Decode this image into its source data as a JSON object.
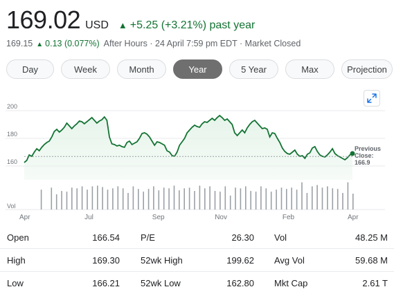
{
  "quote": {
    "price": "169.02",
    "currency": "USD",
    "change_arrow": "▲",
    "change": "+5.25 (+3.21%) past year",
    "after_hours_price": "169.15",
    "after_hours_arrow": "▲",
    "after_hours_change": "0.13 (0.077%)",
    "after_hours_note": "After Hours · 24 April 7:59 pm EDT · Market Closed",
    "up_color": "#137333"
  },
  "tabs": [
    {
      "label": "Day",
      "active": false
    },
    {
      "label": "Week",
      "active": false
    },
    {
      "label": "Month",
      "active": false
    },
    {
      "label": "Year",
      "active": true
    },
    {
      "label": "5 Year",
      "active": false
    },
    {
      "label": "Max",
      "active": false
    },
    {
      "label": "Projection",
      "active": false
    }
  ],
  "expand_icon": "expand-diagonal-icon",
  "chart_data": {
    "type": "area",
    "y_ticks": [
      "200",
      "180",
      "160"
    ],
    "y_tick_values": [
      200,
      180,
      160
    ],
    "ylim": [
      150,
      203
    ],
    "volume_label": "Vol",
    "x_labels": [
      "Apr",
      "Jul",
      "Sep",
      "Nov",
      "Feb",
      "Apr"
    ],
    "x_label_positions": [
      0,
      0.26,
      0.53,
      0.78,
      1.05,
      1.31
    ],
    "previous_close_label": [
      "Previous",
      "Close:",
      "166.9"
    ],
    "previous_close": 166.9,
    "line_color": "#137333",
    "fill_color": "#e6f4ea",
    "grid": true,
    "series": [
      {
        "values": [
          162.5,
          164,
          168,
          167,
          170,
          172.5,
          171,
          173.5,
          175.5,
          177,
          178,
          181,
          185,
          186.5,
          184.5,
          186,
          188,
          191,
          189,
          187,
          189,
          190.5,
          192.5,
          192,
          190.5,
          192,
          193.5,
          195,
          193,
          191,
          192.5,
          193.5,
          195.5,
          193,
          181,
          176,
          175.5,
          174.5,
          175,
          174,
          173.5,
          177,
          178,
          175.5,
          176.5,
          177.5,
          180,
          183.5,
          184,
          183,
          181,
          178,
          175,
          177.5,
          177,
          176,
          175,
          171,
          170,
          167.5,
          167,
          170,
          175,
          177.5,
          180,
          184,
          186,
          188,
          189.5,
          188.5,
          188,
          190.5,
          192,
          191.5,
          193,
          194.5,
          193,
          195,
          196.5,
          195,
          193,
          194,
          192,
          190,
          184,
          182,
          184,
          186,
          184,
          187.5,
          190,
          192,
          193,
          191,
          189,
          187,
          187.5,
          186.5,
          181,
          184,
          183.5,
          180,
          177,
          173,
          170.5,
          169,
          168.5,
          170,
          171.5,
          168.5,
          167,
          167.5,
          165.5,
          168.5,
          169.5,
          173,
          174,
          170.5,
          168,
          167,
          166.5,
          168,
          170,
          172.5,
          169,
          167.5,
          166.5,
          165.5,
          164.5,
          166,
          168,
          169.02
        ]
      }
    ],
    "volume": [
      0,
      0,
      0.6,
      0,
      0.66,
      0.46,
      0.56,
      0.54,
      0.66,
      0.64,
      0.7,
      0.6,
      0.7,
      0.72,
      0.68,
      0.6,
      0.64,
      0.7,
      0.64,
      0.5,
      0.7,
      0.62,
      0.54,
      0.62,
      0.7,
      0.58,
      0.66,
      0.64,
      0.72,
      0.58,
      0.64,
      0.66,
      0.56,
      0.72,
      0.64,
      0.7,
      0.56,
      0.54,
      0.7,
      0.42,
      0.66,
      0.64,
      0.7,
      0.56,
      0.54,
      0.7,
      0.64,
      0.54,
      0.6,
      0.66,
      0.62,
      0.66,
      0.6,
      0.82,
      0.5,
      0.7,
      0.74,
      0.66,
      0.7,
      0.64,
      0.62,
      0.5,
      0.82,
      0.48
    ]
  },
  "stats": {
    "rows": [
      [
        {
          "label": "Open",
          "value": "166.54"
        },
        {
          "label": "P/E",
          "value": "26.30"
        },
        {
          "label": "Vol",
          "value": "48.25 M"
        }
      ],
      [
        {
          "label": "High",
          "value": "169.30"
        },
        {
          "label": "52wk High",
          "value": "199.62"
        },
        {
          "label": "Avg Vol",
          "value": "59.68 M"
        }
      ],
      [
        {
          "label": "Low",
          "value": "166.21"
        },
        {
          "label": "52wk Low",
          "value": "162.80"
        },
        {
          "label": "Mkt Cap",
          "value": "2.61 T"
        }
      ]
    ]
  }
}
